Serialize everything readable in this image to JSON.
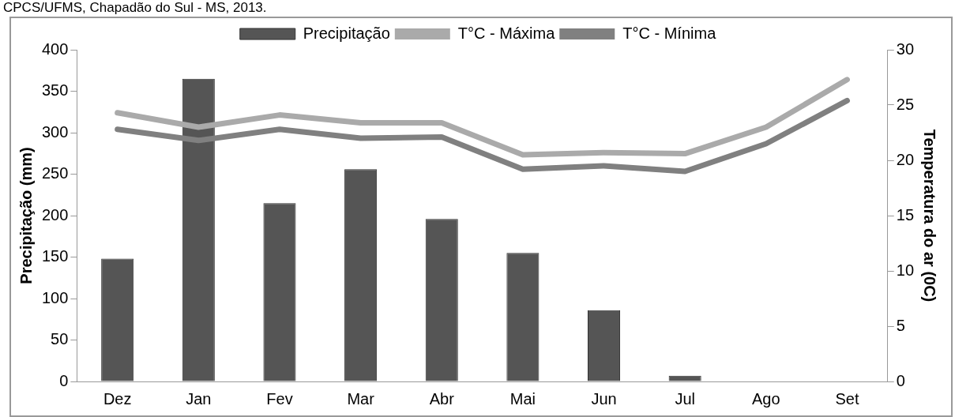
{
  "chart_data": {
    "type": "bar",
    "annotations": [
      "CPCS/UFMS, Chapadão do Sul - MS, 2013."
    ],
    "categories": [
      "Dez",
      "Jan",
      "Fev",
      "Mar",
      "Abr",
      "Mai",
      "Jun",
      "Jul",
      "Ago",
      "Set"
    ],
    "series": [
      {
        "name": "Precipitação",
        "color": "#555555",
        "values": [
          148,
          365,
          215,
          256,
          196,
          155,
          86,
          7,
          null,
          null
        ]
      },
      {
        "name": "T°C - Máxima",
        "type": "line",
        "axis": "y2",
        "color": "#aaaaaa",
        "values": [
          24.3,
          23.0,
          24.1,
          23.4,
          23.4,
          20.5,
          20.7,
          20.6,
          23.0,
          27.3
        ]
      },
      {
        "name": "T°C - Mínima",
        "type": "line",
        "axis": "y2",
        "color": "#808080",
        "values": [
          22.8,
          21.8,
          22.8,
          22.0,
          22.1,
          19.2,
          19.5,
          19.0,
          21.5,
          25.4
        ]
      }
    ],
    "ylabel": "Precipitação (mm)",
    "y2label": "Temperatura do ar (0C)",
    "ylim": [
      0,
      400
    ],
    "yticks": [
      0,
      50,
      100,
      150,
      200,
      250,
      300,
      350,
      400
    ],
    "y2lim": [
      0,
      30
    ],
    "y2ticks": [
      0,
      5,
      10,
      15,
      20,
      25,
      30
    ],
    "grid": false,
    "legend": "top",
    "marker": "none",
    "line_style": "solid"
  }
}
